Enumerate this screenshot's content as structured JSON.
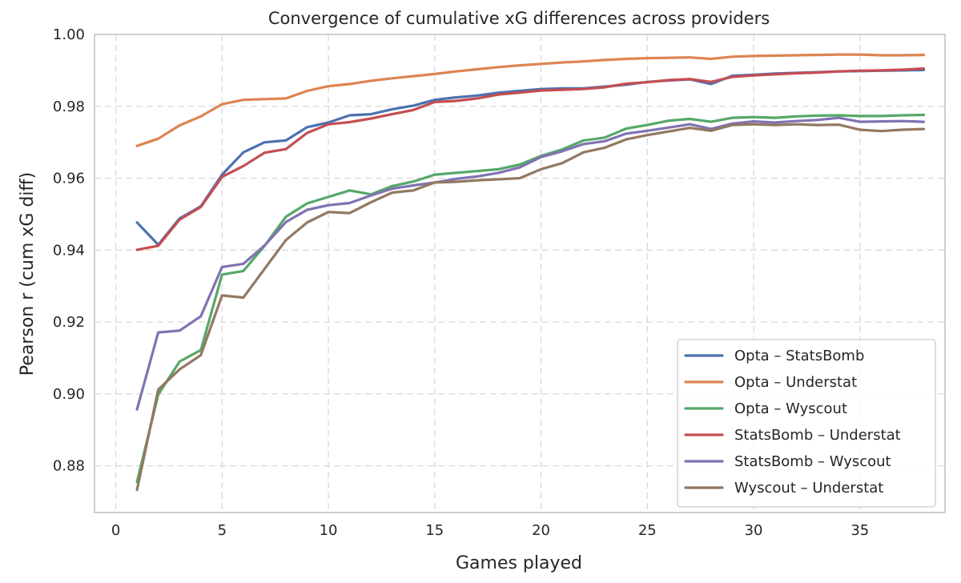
{
  "chart_data": {
    "type": "line",
    "title": "Convergence of cumulative xG differences across providers",
    "xlabel": "Games played",
    "ylabel": "Pearson r (cum xG diff)",
    "xlim": [
      -1,
      39
    ],
    "ylim": [
      0.867,
      1.0
    ],
    "xticks": [
      0,
      5,
      10,
      15,
      20,
      25,
      30,
      35
    ],
    "yticks": [
      0.88,
      0.9,
      0.92,
      0.94,
      0.96,
      0.98,
      1.0
    ],
    "ytick_labels": [
      "0.88",
      "0.90",
      "0.92",
      "0.94",
      "0.96",
      "0.98",
      "1.00"
    ],
    "grid": true,
    "legend_position": "lower-right",
    "x": [
      1,
      2,
      3,
      4,
      5,
      6,
      7,
      8,
      9,
      10,
      11,
      12,
      13,
      14,
      15,
      16,
      17,
      18,
      19,
      20,
      21,
      22,
      23,
      24,
      25,
      26,
      27,
      28,
      29,
      30,
      31,
      32,
      33,
      34,
      35,
      36,
      37,
      38
    ],
    "series": [
      {
        "name": "Opta – StatsBomb",
        "color": "#4c72b0",
        "values": [
          0.9477,
          0.9415,
          0.9488,
          0.9522,
          0.961,
          0.9672,
          0.97,
          0.9705,
          0.9742,
          0.9755,
          0.9775,
          0.9778,
          0.9792,
          0.9802,
          0.9818,
          0.9825,
          0.983,
          0.9838,
          0.9843,
          0.9848,
          0.985,
          0.985,
          0.9855,
          0.986,
          0.9868,
          0.9872,
          0.9875,
          0.9862,
          0.9885,
          0.9888,
          0.9891,
          0.9893,
          0.9895,
          0.9897,
          0.9898,
          0.9899,
          0.99,
          0.9901
        ]
      },
      {
        "name": "Opta – Understat",
        "color": "#dd8452",
        "values": [
          0.969,
          0.971,
          0.9747,
          0.9772,
          0.9806,
          0.9818,
          0.982,
          0.9822,
          0.9843,
          0.9856,
          0.9862,
          0.9871,
          0.9878,
          0.9884,
          0.989,
          0.9897,
          0.9903,
          0.9909,
          0.9914,
          0.9918,
          0.9922,
          0.9925,
          0.9929,
          0.9932,
          0.9934,
          0.9935,
          0.9936,
          0.9932,
          0.9938,
          0.994,
          0.9941,
          0.9942,
          0.9943,
          0.9944,
          0.9944,
          0.9942,
          0.9942,
          0.9943
        ]
      },
      {
        "name": "Opta – Wyscout",
        "color": "#55a868",
        "values": [
          0.8755,
          0.8998,
          0.909,
          0.9122,
          0.9332,
          0.9342,
          0.9412,
          0.9493,
          0.953,
          0.9548,
          0.9566,
          0.9555,
          0.9578,
          0.9591,
          0.961,
          0.9615,
          0.962,
          0.9625,
          0.9638,
          0.9662,
          0.968,
          0.9705,
          0.9713,
          0.9738,
          0.9748,
          0.976,
          0.9765,
          0.9757,
          0.9768,
          0.977,
          0.9768,
          0.9772,
          0.9774,
          0.9775,
          0.9773,
          0.9773,
          0.9775,
          0.9776
        ]
      },
      {
        "name": "StatsBomb – Understat",
        "color": "#c44e52",
        "values": [
          0.9401,
          0.9412,
          0.9485,
          0.952,
          0.9604,
          0.9634,
          0.9671,
          0.9681,
          0.9726,
          0.975,
          0.9756,
          0.9766,
          0.9778,
          0.979,
          0.9812,
          0.9815,
          0.9822,
          0.9833,
          0.9838,
          0.9844,
          0.9846,
          0.9848,
          0.9853,
          0.9863,
          0.9867,
          0.9873,
          0.9876,
          0.9868,
          0.9882,
          0.9886,
          0.9889,
          0.9892,
          0.9894,
          0.9897,
          0.9899,
          0.99,
          0.9902,
          0.9905
        ]
      },
      {
        "name": "StatsBomb – Wyscout",
        "color": "#8172b3",
        "values": [
          0.8957,
          0.9171,
          0.9176,
          0.9216,
          0.9353,
          0.9362,
          0.9413,
          0.9478,
          0.9512,
          0.9525,
          0.9531,
          0.9552,
          0.9571,
          0.958,
          0.9588,
          0.9598,
          0.9605,
          0.9615,
          0.963,
          0.9659,
          0.9675,
          0.9695,
          0.9703,
          0.9724,
          0.9732,
          0.9741,
          0.975,
          0.9737,
          0.9752,
          0.9758,
          0.9755,
          0.9759,
          0.9762,
          0.9768,
          0.9757,
          0.9758,
          0.9759,
          0.9757
        ]
      },
      {
        "name": "Wyscout – Understat",
        "color": "#937860",
        "values": [
          0.8733,
          0.9012,
          0.9068,
          0.9108,
          0.9274,
          0.9268,
          0.9348,
          0.9428,
          0.9477,
          0.9506,
          0.9503,
          0.9533,
          0.956,
          0.9566,
          0.9588,
          0.959,
          0.9594,
          0.9597,
          0.96,
          0.9625,
          0.9642,
          0.9672,
          0.9685,
          0.9708,
          0.972,
          0.973,
          0.974,
          0.9732,
          0.9748,
          0.975,
          0.9748,
          0.975,
          0.9748,
          0.9749,
          0.9735,
          0.9731,
          0.9735,
          0.9737
        ]
      }
    ]
  }
}
